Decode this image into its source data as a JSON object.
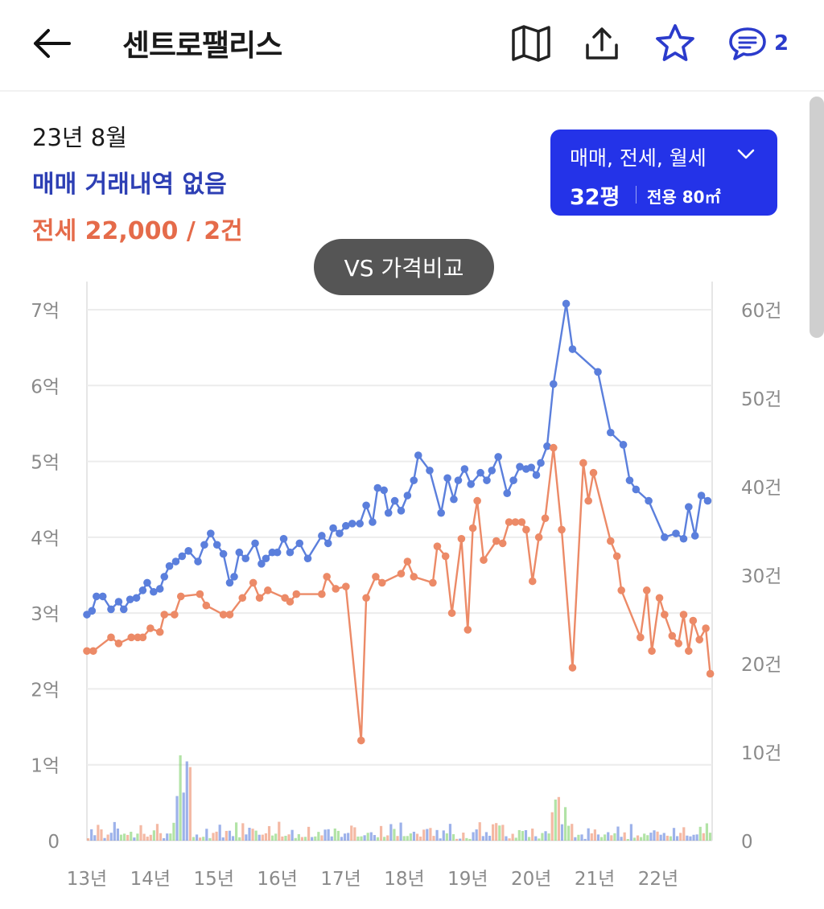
{
  "header": {
    "title": "센트로팰리스",
    "comment_count": "2",
    "icons": [
      "back-arrow-icon",
      "map-icon",
      "share-icon",
      "star-icon",
      "comment-icon"
    ]
  },
  "summary": {
    "date": "23년 8월",
    "sale_text": "매매 거래내역 없음",
    "jeonse_text": "전세 22,000 / 2건"
  },
  "filter": {
    "types": "매매, 전세, 월세",
    "size": "32평",
    "area": "전용 80㎡"
  },
  "compare_button": "VS 가격비교",
  "colors": {
    "accent": "#2433e8",
    "sale": "#5b7fdc",
    "jeonse": "#ec8a67",
    "wolse": "#7fd06b"
  },
  "chart_data": {
    "type": "line",
    "x_ticks": [
      "13년",
      "14년",
      "15년",
      "16년",
      "17년",
      "18년",
      "19년",
      "20년",
      "21년",
      "22년"
    ],
    "y_left_ticks": [
      "0",
      "1억",
      "2억",
      "3억",
      "4억",
      "5억",
      "6억",
      "7억"
    ],
    "y_right_ticks": [
      "0",
      "10건",
      "20건",
      "30건",
      "40건",
      "50건",
      "60건"
    ],
    "y_left_range": [
      0,
      7
    ],
    "y_right_range": [
      0,
      60
    ],
    "grid": true,
    "series": [
      {
        "kind": "sale",
        "points": [
          [
            2013.0,
            2.98
          ],
          [
            2013.08,
            3.03
          ],
          [
            2013.15,
            3.22
          ],
          [
            2013.25,
            3.22
          ],
          [
            2013.38,
            3.05
          ],
          [
            2013.5,
            3.15
          ],
          [
            2013.58,
            3.05
          ],
          [
            2013.68,
            3.18
          ],
          [
            2013.78,
            3.2
          ],
          [
            2013.88,
            3.3
          ],
          [
            2013.95,
            3.4
          ],
          [
            2014.05,
            3.28
          ],
          [
            2014.15,
            3.32
          ],
          [
            2014.22,
            3.48
          ],
          [
            2014.3,
            3.62
          ],
          [
            2014.4,
            3.68
          ],
          [
            2014.5,
            3.75
          ],
          [
            2014.6,
            3.82
          ],
          [
            2014.75,
            3.68
          ],
          [
            2014.85,
            3.9
          ],
          [
            2014.95,
            4.05
          ],
          [
            2015.05,
            3.9
          ],
          [
            2015.15,
            3.78
          ],
          [
            2015.25,
            3.4
          ],
          [
            2015.32,
            3.48
          ],
          [
            2015.4,
            3.8
          ],
          [
            2015.5,
            3.72
          ],
          [
            2015.65,
            3.92
          ],
          [
            2015.75,
            3.65
          ],
          [
            2015.82,
            3.72
          ],
          [
            2015.92,
            3.8
          ],
          [
            2016.0,
            3.8
          ],
          [
            2016.1,
            3.98
          ],
          [
            2016.2,
            3.8
          ],
          [
            2016.35,
            3.92
          ],
          [
            2016.48,
            3.72
          ],
          [
            2016.7,
            4.02
          ],
          [
            2016.8,
            3.92
          ],
          [
            2016.88,
            4.12
          ],
          [
            2016.98,
            4.05
          ],
          [
            2017.08,
            4.15
          ],
          [
            2017.18,
            4.18
          ],
          [
            2017.3,
            4.18
          ],
          [
            2017.4,
            4.42
          ],
          [
            2017.5,
            4.2
          ],
          [
            2017.58,
            4.65
          ],
          [
            2017.68,
            4.62
          ],
          [
            2017.75,
            4.32
          ],
          [
            2017.85,
            4.48
          ],
          [
            2017.95,
            4.35
          ],
          [
            2018.05,
            4.55
          ],
          [
            2018.15,
            4.75
          ],
          [
            2018.22,
            5.08
          ],
          [
            2018.4,
            4.88
          ],
          [
            2018.58,
            4.32
          ],
          [
            2018.68,
            4.78
          ],
          [
            2018.78,
            4.5
          ],
          [
            2018.85,
            4.75
          ],
          [
            2018.95,
            4.9
          ],
          [
            2019.05,
            4.7
          ],
          [
            2019.2,
            4.85
          ],
          [
            2019.3,
            4.75
          ],
          [
            2019.38,
            4.88
          ],
          [
            2019.48,
            5.06
          ],
          [
            2019.62,
            4.58
          ],
          [
            2019.72,
            4.75
          ],
          [
            2019.82,
            4.93
          ],
          [
            2019.92,
            4.9
          ],
          [
            2020.0,
            4.92
          ],
          [
            2020.08,
            4.82
          ],
          [
            2020.15,
            4.98
          ],
          [
            2020.25,
            5.2
          ],
          [
            2020.35,
            6.02
          ],
          [
            2020.55,
            7.08
          ],
          [
            2020.65,
            6.48
          ],
          [
            2021.05,
            6.18
          ],
          [
            2021.25,
            5.38
          ],
          [
            2021.45,
            5.22
          ],
          [
            2021.55,
            4.75
          ],
          [
            2021.65,
            4.63
          ],
          [
            2021.85,
            4.48
          ],
          [
            2022.1,
            4.0
          ],
          [
            2022.28,
            4.05
          ],
          [
            2022.4,
            3.98
          ],
          [
            2022.48,
            4.4
          ],
          [
            2022.58,
            4.02
          ],
          [
            2022.68,
            4.55
          ],
          [
            2022.78,
            4.48
          ]
        ]
      },
      {
        "kind": "jeonse",
        "points": [
          [
            2013.0,
            2.5
          ],
          [
            2013.1,
            2.5
          ],
          [
            2013.38,
            2.68
          ],
          [
            2013.5,
            2.6
          ],
          [
            2013.7,
            2.68
          ],
          [
            2013.8,
            2.68
          ],
          [
            2013.88,
            2.68
          ],
          [
            2014.0,
            2.8
          ],
          [
            2014.15,
            2.75
          ],
          [
            2014.22,
            2.98
          ],
          [
            2014.38,
            2.98
          ],
          [
            2014.48,
            3.22
          ],
          [
            2014.78,
            3.25
          ],
          [
            2014.88,
            3.1
          ],
          [
            2015.15,
            2.98
          ],
          [
            2015.25,
            2.98
          ],
          [
            2015.45,
            3.2
          ],
          [
            2015.62,
            3.4
          ],
          [
            2015.72,
            3.2
          ],
          [
            2015.85,
            3.3
          ],
          [
            2016.12,
            3.2
          ],
          [
            2016.2,
            3.15
          ],
          [
            2016.3,
            3.25
          ],
          [
            2016.7,
            3.25
          ],
          [
            2016.78,
            3.48
          ],
          [
            2016.92,
            3.32
          ],
          [
            2017.08,
            3.35
          ],
          [
            2017.32,
            1.32
          ],
          [
            2017.4,
            3.2
          ],
          [
            2017.55,
            3.48
          ],
          [
            2017.65,
            3.4
          ],
          [
            2017.95,
            3.52
          ],
          [
            2018.05,
            3.68
          ],
          [
            2018.15,
            3.48
          ],
          [
            2018.45,
            3.4
          ],
          [
            2018.52,
            3.88
          ],
          [
            2018.65,
            3.75
          ],
          [
            2018.75,
            3.0
          ],
          [
            2018.9,
            3.98
          ],
          [
            2019.0,
            2.78
          ],
          [
            2019.08,
            4.12
          ],
          [
            2019.15,
            4.48
          ],
          [
            2019.25,
            3.7
          ],
          [
            2019.45,
            3.95
          ],
          [
            2019.55,
            3.92
          ],
          [
            2019.65,
            4.2
          ],
          [
            2019.75,
            4.2
          ],
          [
            2019.85,
            4.2
          ],
          [
            2019.92,
            4.1
          ],
          [
            2020.02,
            3.42
          ],
          [
            2020.12,
            4.0
          ],
          [
            2020.22,
            4.25
          ],
          [
            2020.35,
            5.18
          ],
          [
            2020.48,
            4.1
          ],
          [
            2020.65,
            2.28
          ],
          [
            2020.82,
            4.98
          ],
          [
            2020.9,
            4.48
          ],
          [
            2020.98,
            4.85
          ],
          [
            2021.25,
            3.95
          ],
          [
            2021.35,
            3.75
          ],
          [
            2021.42,
            3.3
          ],
          [
            2021.72,
            2.68
          ],
          [
            2021.82,
            3.3
          ],
          [
            2021.9,
            2.5
          ],
          [
            2022.02,
            3.2
          ],
          [
            2022.1,
            2.98
          ],
          [
            2022.22,
            2.7
          ],
          [
            2022.32,
            2.6
          ],
          [
            2022.4,
            2.98
          ],
          [
            2022.48,
            2.5
          ],
          [
            2022.55,
            2.9
          ],
          [
            2022.65,
            2.65
          ],
          [
            2022.75,
            2.8
          ],
          [
            2022.82,
            2.2
          ]
        ]
      }
    ]
  }
}
